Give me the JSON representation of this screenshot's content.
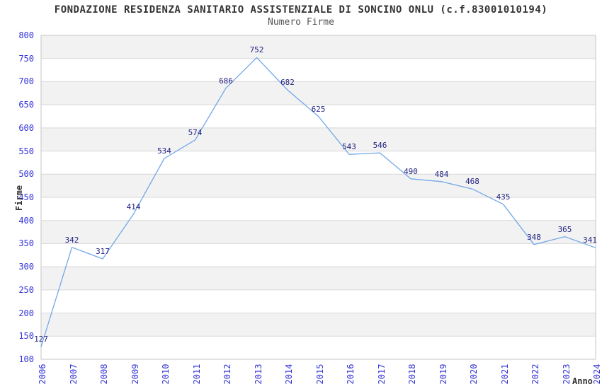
{
  "title": "FONDAZIONE RESIDENZA SANITARIO ASSISTENZIALE DI SONCINO ONLU (c.f.83001010194)",
  "subtitle": "Numero Firme",
  "chart_data": {
    "type": "line",
    "title": "FONDAZIONE RESIDENZA SANITARIO ASSISTENZIALE DI SONCINO ONLU (c.f.83001010194)",
    "subtitle": "Numero Firme",
    "xlabel": "Anno",
    "ylabel": "Firme",
    "x": [
      2006,
      2007,
      2008,
      2009,
      2010,
      2011,
      2012,
      2013,
      2014,
      2015,
      2016,
      2017,
      2018,
      2019,
      2020,
      2021,
      2022,
      2023,
      2024
    ],
    "series": [
      {
        "name": "Numero Firme",
        "values": [
          127,
          342,
          317,
          414,
          534,
          574,
          686,
          752,
          682,
          625,
          543,
          546,
          490,
          484,
          468,
          435,
          348,
          365,
          341
        ]
      }
    ],
    "ylim": [
      100,
      800
    ],
    "ytick_step": 50,
    "y_ticks": [
      800,
      750,
      700,
      650,
      600,
      550,
      500,
      450,
      400,
      350,
      300,
      250,
      200,
      150,
      100
    ],
    "grid": true,
    "legend_position": "none",
    "colors": {
      "line": "#74a7e8",
      "data_label": "#242482",
      "tick_label": "#3232d8",
      "band": "#f2f2f2",
      "grid_line": "#d8d8d8",
      "plot_border": "#c6c6c6",
      "title": "#333333",
      "subtitle": "#555555"
    }
  }
}
